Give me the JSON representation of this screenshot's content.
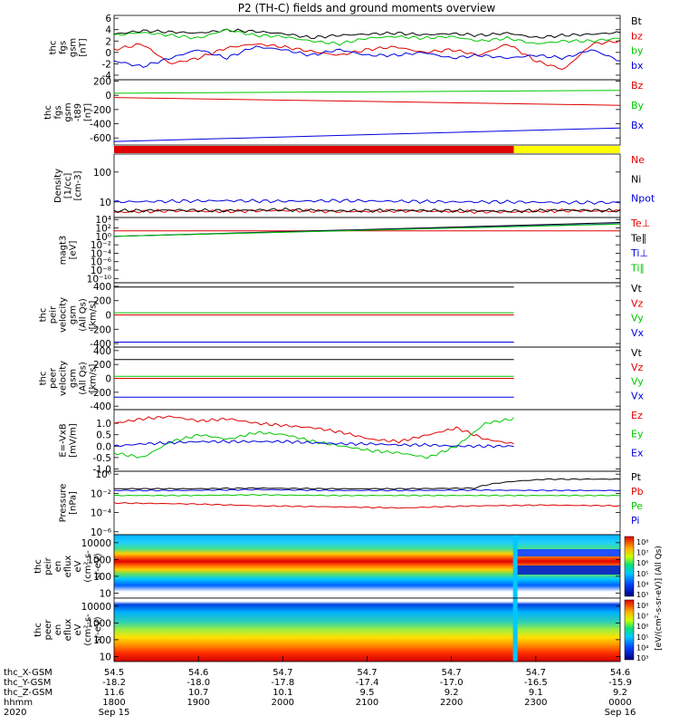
{
  "title": "P2 (TH-C) fields and ground moments overview",
  "colors": {
    "black": "#000000",
    "red": "#e00000",
    "green": "#00c800",
    "blue": "#0000e0",
    "yellow": "#ffff00",
    "cyan": "#00c8ff"
  },
  "chart_data": [
    {
      "id": "fgs",
      "type": "line",
      "ylabel": [
        "thc",
        "fgs",
        "gsm",
        "[nT]"
      ],
      "yticks": [
        "6",
        "4",
        "2",
        "0",
        "-2",
        "-4"
      ],
      "ylim": [
        -4.8,
        6.5
      ],
      "series": [
        {
          "name": "Bt",
          "color": "#000000",
          "values": [
            3.2,
            3.8,
            3.6,
            3.4,
            3.9,
            3.7,
            3.3,
            2.6,
            3.0,
            3.2,
            3.4,
            3.1,
            3.3,
            3.0,
            3.4,
            2.6,
            3.0,
            3.2,
            3.5
          ]
        },
        {
          "name": "bz",
          "color": "#e00000",
          "values": [
            0.5,
            1.5,
            -2.0,
            -1.0,
            0.8,
            1.5,
            1.0,
            0.2,
            -0.5,
            0.5,
            1.0,
            0.0,
            0.5,
            -0.5,
            1.5,
            -1.5,
            -3.0,
            1.5,
            2.0
          ]
        },
        {
          "name": "by",
          "color": "#00c800",
          "values": [
            3.0,
            3.5,
            3.0,
            2.5,
            4.0,
            3.0,
            2.8,
            2.0,
            1.5,
            2.5,
            2.8,
            2.5,
            2.8,
            2.0,
            2.5,
            1.5,
            2.0,
            2.0,
            2.5
          ]
        },
        {
          "name": "bx",
          "color": "#0000e0",
          "values": [
            -1.5,
            -2.5,
            -1.0,
            0.5,
            -1.0,
            1.0,
            0.5,
            -0.5,
            0.5,
            -0.5,
            -0.5,
            0.0,
            -1.0,
            -0.5,
            -1.0,
            -0.5,
            -1.0,
            0.5,
            -1.5
          ]
        }
      ]
    },
    {
      "id": "pos",
      "type": "line",
      "ylabel": [
        "thc",
        "fgs",
        "gsm",
        "-t89",
        "[nT]"
      ],
      "yticks": [
        "200",
        "0",
        "-200",
        "-400",
        "-600"
      ],
      "ylim": [
        -700,
        220
      ],
      "series": [
        {
          "name": "Bz",
          "color": "#e00000",
          "values": [
            -30,
            -140
          ]
        },
        {
          "name": "By",
          "color": "#00c800",
          "values": [
            30,
            70
          ]
        },
        {
          "name": "Bx",
          "color": "#0000e0",
          "values": [
            -650,
            -460
          ]
        }
      ]
    },
    {
      "id": "mode",
      "type": "bar",
      "segments": [
        {
          "color": "#e00000",
          "from": 0.0,
          "to": 0.79
        },
        {
          "color": "#ffff00",
          "from": 0.79,
          "to": 1.0
        }
      ]
    },
    {
      "id": "density",
      "type": "line",
      "log": true,
      "ylabel": [
        "Density",
        "[1/cc]",
        "[cm-3]"
      ],
      "yticks": [
        "100",
        "10"
      ],
      "ylim": [
        3,
        400
      ],
      "series": [
        {
          "name": "Ne",
          "color": "#e00000",
          "values": [
            4.5,
            5.0,
            4.8,
            5.2,
            4.7,
            5.0,
            4.8,
            4.6,
            5.1,
            4.9
          ]
        },
        {
          "name": "Ni",
          "color": "#000000",
          "values": [
            5.0,
            5.3,
            5.1,
            5.5,
            5.0,
            5.2,
            5.1,
            4.9,
            5.3,
            5.1
          ]
        },
        {
          "name": "Npot",
          "color": "#0000e0",
          "values": [
            10,
            10.5,
            11,
            10.5,
            11,
            10.5,
            10,
            10,
            9.5,
            9.5
          ]
        }
      ]
    },
    {
      "id": "temp",
      "type": "line",
      "log": true,
      "ylabel": [
        "magt3",
        "[eV]"
      ],
      "yticks": [
        "10⁴",
        "10²",
        "10⁰",
        "10⁻²",
        "10⁻⁴",
        "10⁻⁶",
        "10⁻⁸",
        "10⁻¹⁰"
      ],
      "ylim": [
        1e-11,
        30000
      ],
      "series": [
        {
          "name": "Te⊥",
          "color": "#e00000",
          "values": [
            20,
            20
          ]
        },
        {
          "name": "Te∥",
          "color": "#000000",
          "values": [
            1,
            2000
          ]
        },
        {
          "name": "Ti⊥",
          "color": "#0000e0",
          "values": [
            1,
            1000
          ]
        },
        {
          "name": "Ti∥",
          "color": "#00c800",
          "values": [
            1,
            800
          ]
        }
      ]
    },
    {
      "id": "peir_vel",
      "type": "line",
      "ylabel": [
        "thc",
        "peir",
        "velocity",
        "gsm",
        "(All Qs)",
        "[km/s]"
      ],
      "yticks": [
        "400",
        "200",
        "0",
        "-200",
        "-400"
      ],
      "ylim": [
        -450,
        450
      ],
      "series": [
        {
          "name": "Vt",
          "color": "#000000",
          "values": [
            390,
            390
          ]
        },
        {
          "name": "Vz",
          "color": "#e00000",
          "values": [
            0,
            0
          ]
        },
        {
          "name": "Vy",
          "color": "#00c800",
          "values": [
            30,
            30
          ]
        },
        {
          "name": "Vx",
          "color": "#0000e0",
          "values": [
            -380,
            -380
          ]
        }
      ]
    },
    {
      "id": "peer_vel",
      "type": "line",
      "ylabel": [
        "thc",
        "peer",
        "velocity",
        "gsm",
        "(All Qs)",
        "[km/s]"
      ],
      "yticks": [
        "400",
        "200",
        "0",
        "-200",
        "-400"
      ],
      "ylim": [
        -450,
        450
      ],
      "series": [
        {
          "name": "Vt",
          "color": "#000000",
          "values": [
            270,
            270
          ]
        },
        {
          "name": "Vz",
          "color": "#e00000",
          "values": [
            0,
            0
          ]
        },
        {
          "name": "Vy",
          "color": "#00c800",
          "values": [
            30,
            30
          ]
        },
        {
          "name": "Vx",
          "color": "#0000e0",
          "values": [
            -270,
            -270
          ]
        }
      ]
    },
    {
      "id": "exb",
      "type": "line",
      "ylabel": [
        "E=-VxB",
        "[mV/m]"
      ],
      "yticks": [
        "1.0",
        "0.5",
        "0.0",
        "-0.5",
        "-1.0"
      ],
      "ylim": [
        -1.1,
        1.6
      ],
      "series": [
        {
          "name": "Ez",
          "color": "#e00000",
          "values": [
            1.0,
            1.2,
            1.3,
            1.1,
            1.2,
            1.0,
            0.9,
            0.8,
            0.6,
            0.3,
            0.2,
            0.5,
            0.8,
            0.3,
            0.1
          ]
        },
        {
          "name": "Ey",
          "color": "#00c800",
          "values": [
            -0.3,
            -0.5,
            0.2,
            0.5,
            0.3,
            0.6,
            0.5,
            0.2,
            0.0,
            -0.2,
            -0.3,
            -0.5,
            0.0,
            1.0,
            1.2
          ]
        },
        {
          "name": "Ex",
          "color": "#0000e0",
          "values": [
            0.0,
            0.1,
            0.15,
            0.2,
            0.2,
            0.2,
            0.2,
            0.15,
            0.1,
            0.1,
            0.05,
            0.05,
            0.0,
            0.0,
            0.0
          ]
        }
      ]
    },
    {
      "id": "pressure",
      "type": "line",
      "log": true,
      "ylabel": [
        "Pressure",
        "[nPa]"
      ],
      "yticks": [
        "10⁰",
        "10⁻²",
        "10⁻⁴",
        "10⁻⁶"
      ],
      "ylim": [
        5e-07,
        2
      ],
      "series": [
        {
          "name": "Pt",
          "color": "#000000",
          "values": [
            0.03,
            0.03,
            0.035,
            0.03,
            0.03,
            0.035,
            0.3,
            0.3
          ]
        },
        {
          "name": "Pb",
          "color": "#e00000",
          "values": [
            0.001,
            0.0008,
            0.0005,
            0.0004,
            0.0003,
            0.0005,
            0.0006,
            0.0005
          ]
        },
        {
          "name": "Pe",
          "color": "#00c800",
          "values": [
            0.006,
            0.006,
            0.007,
            0.006,
            0.006,
            0.006,
            0.006,
            0.006
          ]
        },
        {
          "name": "Pi",
          "color": "#0000e0",
          "values": [
            0.02,
            0.02,
            0.025,
            0.02,
            0.02,
            0.022,
            0.02,
            0.02
          ]
        }
      ]
    },
    {
      "id": "peir_spec",
      "type": "heatmap",
      "log": true,
      "ylabel": [
        "thc",
        "peir",
        "en",
        "eflux",
        "eV",
        "(cm²-s-",
        "sr-eV)"
      ],
      "yticks": [
        "10000",
        "1000",
        "100",
        "10"
      ],
      "ylim": [
        5,
        30000
      ],
      "colorbar_label": "[eV/(cm²-s-sr-eV)] (All Qs)",
      "colorbar_ticks": [
        "10⁸",
        "10⁷",
        "10⁶",
        "10⁵",
        "10⁴",
        "10³"
      ]
    },
    {
      "id": "peer_spec",
      "type": "heatmap",
      "log": true,
      "ylabel": [
        "thc",
        "peer",
        "en",
        "eflux",
        "eV",
        "(cm²-s-",
        "sr-eV)"
      ],
      "yticks": [
        "10000",
        "1000",
        "100",
        "10"
      ],
      "ylim": [
        5,
        30000
      ],
      "colorbar_ticks": [
        "10⁸",
        "10⁷",
        "10⁶",
        "10⁵",
        "10⁴",
        "10³"
      ]
    }
  ],
  "xaxis": {
    "row_labels": [
      "thc_X-GSM",
      "thc_Y-GSM",
      "thc_Z-GSM",
      "hhmm",
      "2020"
    ],
    "columns": [
      {
        "x": [
          "54.5",
          "-18.2",
          "11.6",
          "1800",
          "Sep 15"
        ]
      },
      {
        "x": [
          "54.6",
          "-18.0",
          "10.7",
          "1900",
          ""
        ]
      },
      {
        "x": [
          "54.7",
          "-17.8",
          "10.1",
          "2000",
          ""
        ]
      },
      {
        "x": [
          "54.7",
          "-17.4",
          "9.5",
          "2100",
          ""
        ]
      },
      {
        "x": [
          "54.7",
          "-17.0",
          "9.2",
          "2200",
          ""
        ]
      },
      {
        "x": [
          "54.7",
          "-16.5",
          "9.1",
          "2300",
          ""
        ]
      },
      {
        "x": [
          "54.6",
          "-15.9",
          "9.2",
          "0000",
          "Sep 16"
        ]
      }
    ]
  }
}
